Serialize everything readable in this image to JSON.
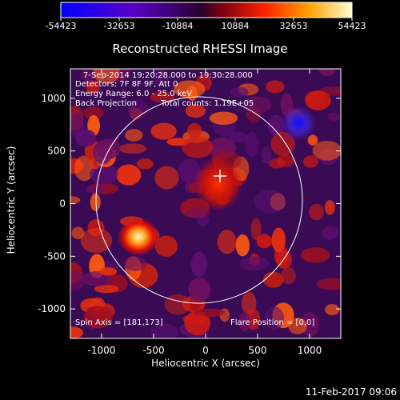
{
  "colorbar": {
    "tick_labels": [
      "-54423",
      "-32653",
      "-10884",
      "10884",
      "32653",
      "54423"
    ]
  },
  "chart_data": {
    "type": "heatmap",
    "title": "Reconstructed RHESSI Image",
    "xlabel": "Heliocentric X (arcsec)",
    "ylabel": "Heliocentric Y (arcsec)",
    "xlim": [
      -1300,
      1300
    ],
    "ylim": [
      -1280,
      1280
    ],
    "x_ticks": [
      -1000,
      -500,
      0,
      500,
      1000
    ],
    "y_ticks": [
      -1000,
      -500,
      0,
      500,
      1000
    ],
    "colorbar_range": [
      -54423,
      54423
    ],
    "sources": [
      {
        "x": -560,
        "y": -340,
        "value": 54423
      },
      {
        "x": 200,
        "y": 190,
        "value": 25000
      },
      {
        "x": 920,
        "y": 680,
        "value": -54423
      }
    ],
    "solar_limb_center": [
      0,
      0
    ],
    "solar_limb_radius": 950,
    "crosshair": [
      181,
      173
    ],
    "grid": false
  },
  "annotations": {
    "time_range": "7-Sep-2014 19:20:28.000 to 19:30:28.000",
    "detectors": "Detectors: 7F 8F 9F, Att 0",
    "energy": "Energy Range: 6.0 - 25.0 keV",
    "method": "Back Projection",
    "total_counts": "Total counts: 1.19E+05",
    "spin_axis": "Spin Axis = [181,173]",
    "flare_position": "Flare Position = [0,0]"
  },
  "footer": {
    "date": "11-Feb-2017 09:06"
  }
}
